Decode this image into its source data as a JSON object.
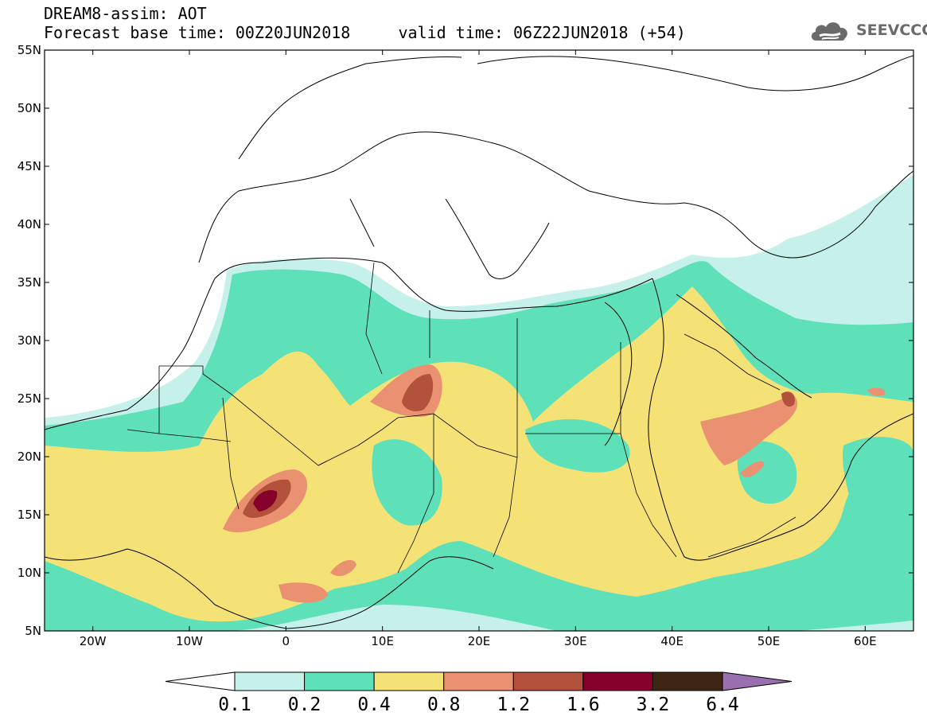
{
  "header": {
    "title_line1": "DREAM8-assim: AOT",
    "title_line2": "Forecast base time: 00Z20JUN2018     valid time: 06Z22JUN2018 (+54)",
    "logo_text": "SEEVCCC"
  },
  "map": {
    "lon_range": [
      -25,
      65
    ],
    "lat_range": [
      5,
      55
    ],
    "lat_ticks": [
      {
        "value": 55,
        "label": "55N"
      },
      {
        "value": 50,
        "label": "50N"
      },
      {
        "value": 45,
        "label": "45N"
      },
      {
        "value": 40,
        "label": "40N"
      },
      {
        "value": 35,
        "label": "35N"
      },
      {
        "value": 30,
        "label": "30N"
      },
      {
        "value": 25,
        "label": "25N"
      },
      {
        "value": 20,
        "label": "20N"
      },
      {
        "value": 15,
        "label": "15N"
      },
      {
        "value": 10,
        "label": "10N"
      },
      {
        "value": 5,
        "label": "5N"
      }
    ],
    "lon_ticks": [
      {
        "value": -20,
        "label": "20W"
      },
      {
        "value": -10,
        "label": "10W"
      },
      {
        "value": 0,
        "label": "0"
      },
      {
        "value": 10,
        "label": "10E"
      },
      {
        "value": 20,
        "label": "20E"
      },
      {
        "value": 30,
        "label": "30E"
      },
      {
        "value": 40,
        "label": "40E"
      },
      {
        "value": 50,
        "label": "50E"
      },
      {
        "value": 60,
        "label": "60E"
      }
    ]
  },
  "colorbar": {
    "labels": [
      "0.1",
      "0.2",
      "0.4",
      "0.8",
      "1.2",
      "1.6",
      "3.2",
      "6.4"
    ],
    "colors": [
      "#c6f0ea",
      "#5ee0b8",
      "#f5e277",
      "#e99170",
      "#b3513d",
      "#85002a",
      "#3f2514"
    ],
    "under_color": "#ffffff",
    "over_color": "#9a6fb0"
  },
  "legend_colors": {
    "0.1-0.2": "#c6f0ea",
    "0.2-0.4": "#5ee0b8",
    "0.4-0.8": "#f5e277",
    "0.8-1.2": "#e99170",
    "1.2-1.6": "#b3513d",
    "1.6-3.2": "#85002a",
    "3.2-6.4": "#3f2514"
  }
}
